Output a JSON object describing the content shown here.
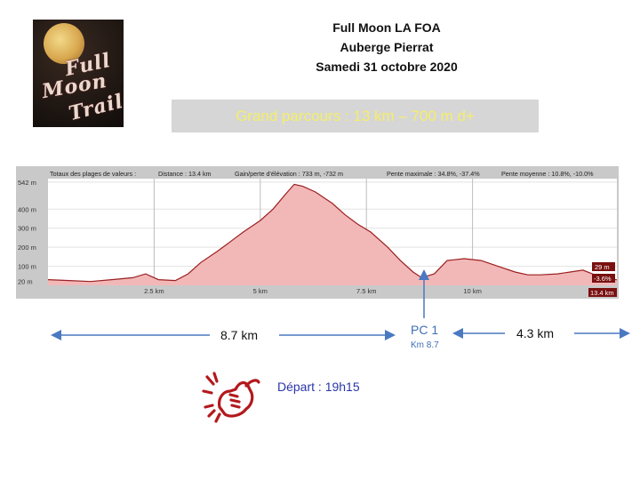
{
  "logo": {
    "line1": "Full",
    "line2": "Moon",
    "line3": "Trail"
  },
  "header": {
    "line1": "Full Moon LA FOA",
    "line2": "Auberge Pierrat",
    "line3": "Samedi 31 octobre 2020"
  },
  "route_banner": "Grand parcours : 13 km – 700 m d+",
  "chart_data": {
    "type": "area",
    "summary": {
      "ranges": "Totaux des plages de valeurs :",
      "distance": "Distance : 13.4 km",
      "gain": "Gain/perte d'élévation : 733 m, -732 m",
      "max_slope": "Pente maximale : 34.8%, -37.4%",
      "avg_slope": "Pente moyenne : 10.8%, -10.0%"
    },
    "x_unit": "km",
    "y_unit": "m",
    "xlim": [
      0,
      13.4
    ],
    "ylim": [
      0,
      560
    ],
    "x_ticks": [
      {
        "value": 2.5,
        "label": "2.5 km"
      },
      {
        "value": 5,
        "label": "5 km"
      },
      {
        "value": 7.5,
        "label": "7.5 km"
      },
      {
        "value": 10,
        "label": "10 km"
      }
    ],
    "y_ticks": [
      {
        "value": 542,
        "label": "542 m"
      },
      {
        "value": 400,
        "label": "400 m"
      },
      {
        "value": 300,
        "label": "300 m"
      },
      {
        "value": 200,
        "label": "200 m"
      },
      {
        "value": 100,
        "label": "100 m"
      },
      {
        "value": 20,
        "label": "20 m"
      }
    ],
    "end_labels": {
      "elevation": "29 m",
      "slope": "-3.6%",
      "distance": "13.4 km"
    },
    "x": [
      0,
      0.5,
      1,
      1.5,
      2,
      2.3,
      2.6,
      3,
      3.3,
      3.6,
      4,
      4.3,
      4.6,
      5,
      5.3,
      5.6,
      5.8,
      6,
      6.3,
      6.7,
      7,
      7.3,
      7.6,
      8,
      8.3,
      8.6,
      8.8,
      9.1,
      9.4,
      9.8,
      10.2,
      10.6,
      11,
      11.3,
      11.6,
      12,
      12.3,
      12.6,
      13,
      13.4
    ],
    "y": [
      30,
      25,
      20,
      30,
      40,
      60,
      30,
      25,
      60,
      120,
      180,
      230,
      280,
      340,
      400,
      480,
      530,
      520,
      490,
      430,
      370,
      320,
      280,
      200,
      130,
      70,
      40,
      60,
      130,
      140,
      130,
      100,
      70,
      55,
      55,
      60,
      70,
      80,
      45,
      29
    ]
  },
  "distances": {
    "left": "8.7 km",
    "right": "4.3 km"
  },
  "checkpoint": {
    "name": "PC 1",
    "km": "Km 8.7"
  },
  "start": {
    "label": "Départ : 19h15"
  },
  "colors": {
    "arrow": "#4a79c1",
    "profile_fill": "#f2b8b8",
    "profile_line": "#9c1f1f",
    "hand": "#b3191c",
    "banner_text": "#f4ee6a"
  }
}
